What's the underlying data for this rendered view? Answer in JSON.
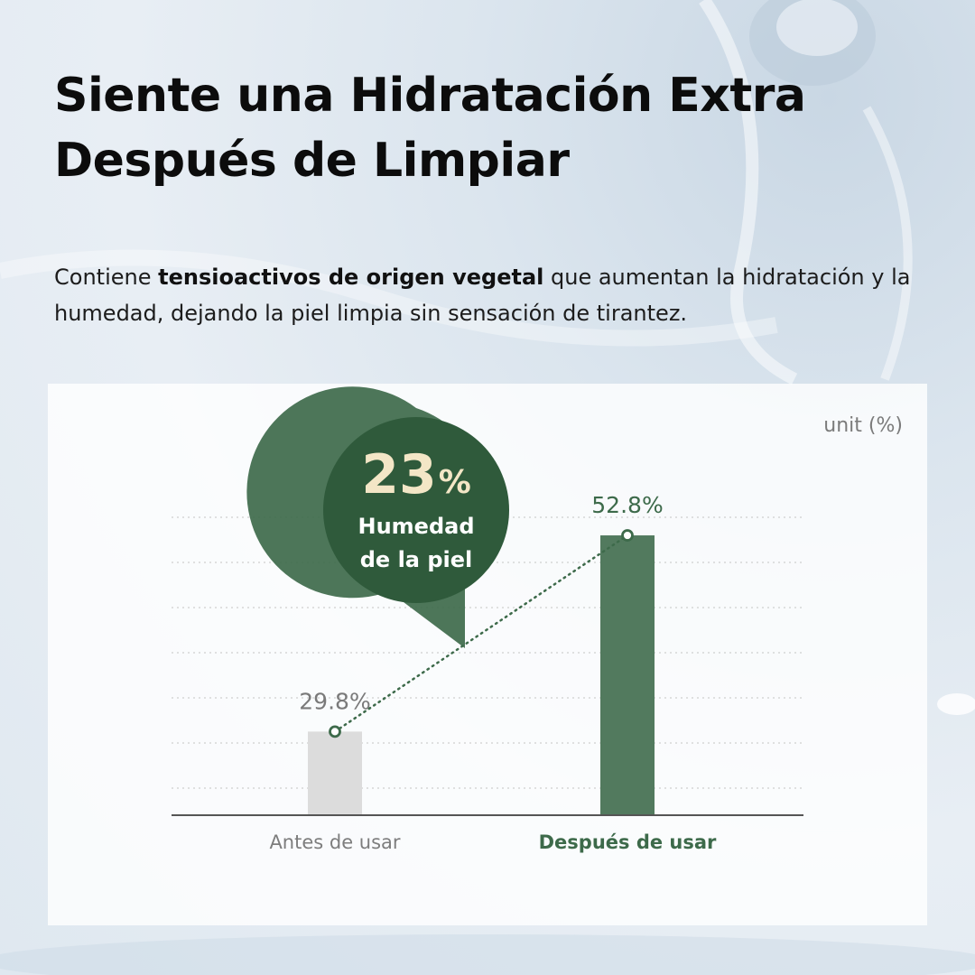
{
  "headline": {
    "line1": "Siente una Hidratación Extra",
    "line2": "Después de Limpiar"
  },
  "description": {
    "part1": "Contiene ",
    "bold": "tensioactivos de origen vegetal",
    "part2": " que aumentan la hidratación y la humedad, dejando la piel limpia sin sensación de tirantez."
  },
  "badge": {
    "value": "23",
    "unit": "%",
    "line1": "Humedad",
    "line2": "de la piel"
  },
  "chart_data": {
    "type": "bar",
    "unit_label": "unit (%)",
    "categories": [
      "Antes de usar",
      "Después de usar"
    ],
    "values": [
      29.8,
      52.8
    ],
    "value_labels": [
      "29.8%",
      "52.8%"
    ],
    "bar_colors": [
      "#dcdcdc",
      "#527a5e"
    ],
    "ylim": [
      20,
      60
    ],
    "grid": true,
    "connector": "dotted-line",
    "accent_color": "#3d6a4a"
  }
}
